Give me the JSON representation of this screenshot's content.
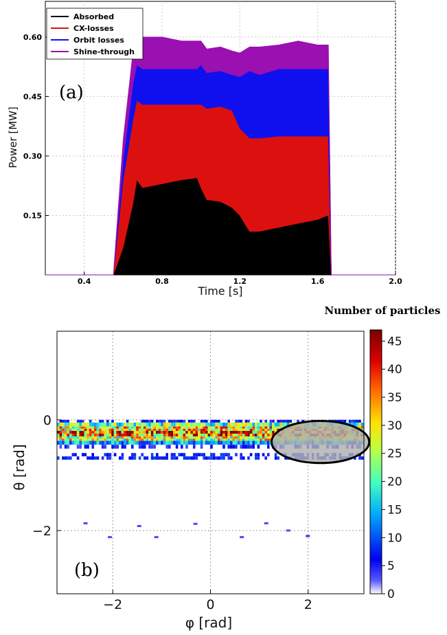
{
  "chart_data": [
    {
      "panel_label": "(a)",
      "type": "area",
      "stacked": true,
      "xlabel": "Time [s]",
      "ylabel": "Power [MW]",
      "xlim": [
        0.2,
        2.0
      ],
      "ylim": [
        0,
        0.69
      ],
      "x_ticks": [
        "0.4",
        "0.8",
        "1.2",
        "1.6",
        "2.0"
      ],
      "x_tick_values": [
        0.4,
        0.8,
        1.2,
        1.6,
        2.0
      ],
      "y_ticks": [
        "0.15",
        "0.30",
        "0.45",
        "0.60"
      ],
      "y_tick_values": [
        0.15,
        0.3,
        0.45,
        0.6
      ],
      "grid": true,
      "legend_position": "top-left",
      "x": [
        0.2,
        0.54,
        0.55,
        0.6,
        0.65,
        0.67,
        0.7,
        0.8,
        0.9,
        0.98,
        1.0,
        1.03,
        1.1,
        1.16,
        1.2,
        1.25,
        1.3,
        1.4,
        1.5,
        1.6,
        1.65,
        1.655,
        1.67,
        2.0
      ],
      "series": [
        {
          "name": "Absorbed",
          "color": "#000000",
          "values": [
            0,
            0,
            0,
            0.07,
            0.18,
            0.24,
            0.22,
            0.23,
            0.24,
            0.245,
            0.22,
            0.19,
            0.185,
            0.17,
            0.15,
            0.11,
            0.11,
            0.12,
            0.13,
            0.14,
            0.15,
            0.15,
            0,
            0
          ]
        },
        {
          "name": "CX-losses",
          "color": "#dd1010",
          "values": [
            0,
            0,
            0,
            0.17,
            0.21,
            0.2,
            0.21,
            0.2,
            0.19,
            0.185,
            0.21,
            0.23,
            0.24,
            0.245,
            0.22,
            0.235,
            0.235,
            0.23,
            0.22,
            0.21,
            0.2,
            0.2,
            0,
            0
          ]
        },
        {
          "name": "Orbit losses",
          "color": "#1010ee",
          "values": [
            0,
            0,
            0,
            0.05,
            0.09,
            0.09,
            0.09,
            0.09,
            0.09,
            0.09,
            0.1,
            0.09,
            0.09,
            0.09,
            0.13,
            0.17,
            0.16,
            0.17,
            0.17,
            0.17,
            0.17,
            0.17,
            0,
            0
          ]
        },
        {
          "name": "Shine-through",
          "color": "#9a10b0",
          "values": [
            0,
            0,
            0,
            0.05,
            0.08,
            0.07,
            0.08,
            0.08,
            0.07,
            0.07,
            0.06,
            0.06,
            0.06,
            0.06,
            0.06,
            0.06,
            0.07,
            0.06,
            0.07,
            0.06,
            0.06,
            0.06,
            0,
            0
          ]
        }
      ]
    },
    {
      "panel_label": "(b)",
      "type": "heatmap",
      "xlabel": "φ [rad]",
      "ylabel": "θ [rad]",
      "xlim": [
        -3.1416,
        3.1416
      ],
      "ylim": [
        -3.1416,
        1.6
      ],
      "x_ticks": [
        "−2",
        "0",
        "2"
      ],
      "x_tick_values": [
        -2,
        0,
        2
      ],
      "y_ticks": [
        "0",
        "−2"
      ],
      "y_tick_values": [
        0,
        -2
      ],
      "grid": true,
      "colorbar": {
        "title": "Number of particles",
        "min": 0,
        "max": 47,
        "ticks": [
          "0",
          "5",
          "10",
          "15",
          "20",
          "25",
          "30",
          "35",
          "40",
          "45"
        ],
        "tick_values": [
          0,
          5,
          10,
          15,
          20,
          25,
          30,
          35,
          40,
          45
        ],
        "colormap": "jet"
      },
      "bands": [
        {
          "theta_top": 0.0,
          "theta_bottom": -0.05,
          "level": 6
        },
        {
          "theta_top": -0.05,
          "theta_bottom": -0.12,
          "level": 22
        },
        {
          "theta_top": -0.12,
          "theta_bottom": -0.2,
          "level": 30
        },
        {
          "theta_top": -0.2,
          "theta_bottom": -0.3,
          "level": 36
        },
        {
          "theta_top": -0.3,
          "theta_bottom": -0.38,
          "level": 27
        },
        {
          "theta_top": -0.38,
          "theta_bottom": -0.45,
          "level": 14
        },
        {
          "theta_top": -0.45,
          "theta_bottom": -0.52,
          "level": 5
        },
        {
          "theta_top": -0.6,
          "theta_bottom": -0.72,
          "level": 7
        }
      ],
      "scattered_points": [
        {
          "phi": -2.6,
          "theta": -1.85,
          "level": 3
        },
        {
          "phi": -1.5,
          "theta": -1.9,
          "level": 3
        },
        {
          "phi": -0.35,
          "theta": -1.86,
          "level": 3
        },
        {
          "phi": 1.1,
          "theta": -1.85,
          "level": 3
        },
        {
          "phi": -1.15,
          "theta": -2.1,
          "level": 3
        },
        {
          "phi": -2.1,
          "theta": -2.1,
          "level": 3
        },
        {
          "phi": 0.6,
          "theta": -2.1,
          "level": 3
        },
        {
          "phi": 1.95,
          "theta": -2.08,
          "level": 4
        },
        {
          "phi": 1.55,
          "theta": -1.98,
          "level": 3
        }
      ],
      "highlight": {
        "shape": "ellipse",
        "phi_center": 2.25,
        "theta_center": -0.4,
        "phi_radius": 1.0,
        "theta_radius": 0.38,
        "fill": "#b0b0b0"
      }
    }
  ]
}
